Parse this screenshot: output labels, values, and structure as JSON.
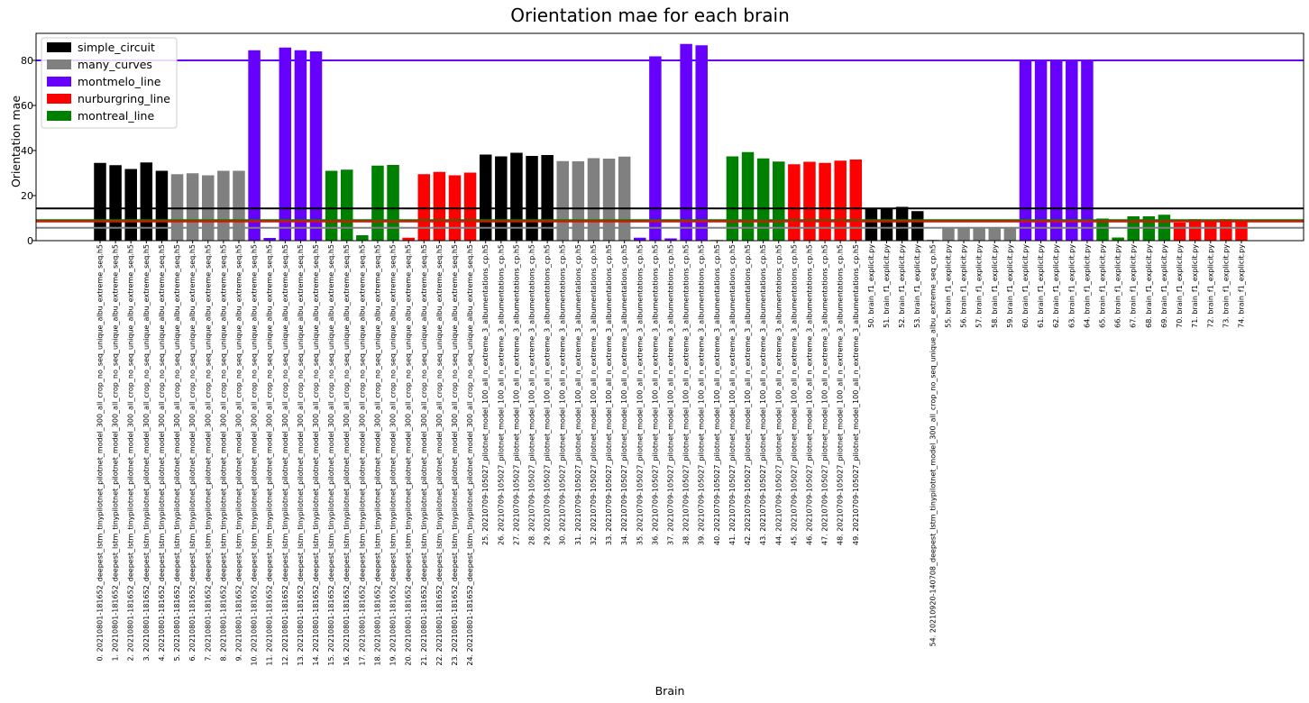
{
  "chart_data": {
    "type": "bar",
    "title": "Orientation mae for each brain",
    "xlabel": "Brain",
    "ylabel": "Orientation mae",
    "ylim": [
      0,
      92
    ],
    "yticks": [
      0,
      20,
      40,
      60,
      80
    ],
    "grid": false,
    "legend_position": "top-left",
    "series": [
      {
        "name": "simple_circuit",
        "color": "#000000"
      },
      {
        "name": "many_curves",
        "color": "#808080"
      },
      {
        "name": "montmelo_line",
        "color": "#6600ff"
      },
      {
        "name": "nurburgring_line",
        "color": "#ff0000"
      },
      {
        "name": "montreal_line",
        "color": "#008000"
      }
    ],
    "reference_lines": [
      {
        "series": "montmelo_line",
        "value": 80
      },
      {
        "series": "simple_circuit",
        "value": 14.3
      },
      {
        "series": "montreal_line",
        "value": 9.1
      },
      {
        "series": "nurburgring_line",
        "value": 8.5
      },
      {
        "series": "many_curves",
        "value": 5.7
      }
    ],
    "categories": [
      "0. 20210801-181652_deepest_lstm_tinypilotnet_pilotnet_model_300_all_crop_no_seq_unique_albu_extreme_seq.h5",
      "1. 20210801-181652_deepest_lstm_tinypilotnet_pilotnet_model_300_all_crop_no_seq_unique_albu_extreme_seq.h5",
      "2. 20210801-181652_deepest_lstm_tinypilotnet_pilotnet_model_300_all_crop_no_seq_unique_albu_extreme_seq.h5",
      "3. 20210801-181652_deepest_lstm_tinypilotnet_pilotnet_model_300_all_crop_no_seq_unique_albu_extreme_seq.h5",
      "4. 20210801-181652_deepest_lstm_tinypilotnet_pilotnet_model_300_all_crop_no_seq_unique_albu_extreme_seq.h5",
      "5. 20210801-181652_deepest_lstm_tinypilotnet_pilotnet_model_300_all_crop_no_seq_unique_albu_extreme_seq.h5",
      "6. 20210801-181652_deepest_lstm_tinypilotnet_pilotnet_model_300_all_crop_no_seq_unique_albu_extreme_seq.h5",
      "7. 20210801-181652_deepest_lstm_tinypilotnet_pilotnet_model_300_all_crop_no_seq_unique_albu_extreme_seq.h5",
      "8. 20210801-181652_deepest_lstm_tinypilotnet_pilotnet_model_300_all_crop_no_seq_unique_albu_extreme_seq.h5",
      "9. 20210801-181652_deepest_lstm_tinypilotnet_pilotnet_model_300_all_crop_no_seq_unique_albu_extreme_seq.h5",
      "10. 20210801-181652_deepest_lstm_tinypilotnet_pilotnet_model_300_all_crop_no_seq_unique_albu_extreme_seq.h5",
      "11. 20210801-181652_deepest_lstm_tinypilotnet_pilotnet_model_300_all_crop_no_seq_unique_albu_extreme_seq.h5",
      "12. 20210801-181652_deepest_lstm_tinypilotnet_pilotnet_model_300_all_crop_no_seq_unique_albu_extreme_seq.h5",
      "13. 20210801-181652_deepest_lstm_tinypilotnet_pilotnet_model_300_all_crop_no_seq_unique_albu_extreme_seq.h5",
      "14. 20210801-181652_deepest_lstm_tinypilotnet_pilotnet_model_300_all_crop_no_seq_unique_albu_extreme_seq.h5",
      "15. 20210801-181652_deepest_lstm_tinypilotnet_pilotnet_model_300_all_crop_no_seq_unique_albu_extreme_seq.h5",
      "16. 20210801-181652_deepest_lstm_tinypilotnet_pilotnet_model_300_all_crop_no_seq_unique_albu_extreme_seq.h5",
      "17. 20210801-181652_deepest_lstm_tinypilotnet_pilotnet_model_300_all_crop_no_seq_unique_albu_extreme_seq.h5",
      "18. 20210801-181652_deepest_lstm_tinypilotnet_pilotnet_model_300_all_crop_no_seq_unique_albu_extreme_seq.h5",
      "19. 20210801-181652_deepest_lstm_tinypilotnet_pilotnet_model_300_all_crop_no_seq_unique_albu_extreme_seq.h5",
      "20. 20210801-181652_deepest_lstm_tinypilotnet_pilotnet_model_300_all_crop_no_seq_unique_albu_extreme_seq.h5",
      "21. 20210801-181652_deepest_lstm_tinypilotnet_pilotnet_model_300_all_crop_no_seq_unique_albu_extreme_seq.h5",
      "22. 20210801-181652_deepest_lstm_tinypilotnet_pilotnet_model_300_all_crop_no_seq_unique_albu_extreme_seq.h5",
      "23. 20210801-181652_deepest_lstm_tinypilotnet_pilotnet_model_300_all_crop_no_seq_unique_albu_extreme_seq.h5",
      "24. 20210801-181652_deepest_lstm_tinypilotnet_pilotnet_model_300_all_crop_no_seq_unique_albu_extreme_seq.h5",
      "25. 20210709-105027_pilotnet_model_100_all_n_extreme_3_albumentations_cp.h5",
      "26. 20210709-105027_pilotnet_model_100_all_n_extreme_3_albumentations_cp.h5",
      "27. 20210709-105027_pilotnet_model_100_all_n_extreme_3_albumentations_cp.h5",
      "28. 20210709-105027_pilotnet_model_100_all_n_extreme_3_albumentations_cp.h5",
      "29. 20210709-105027_pilotnet_model_100_all_n_extreme_3_albumentations_cp.h5",
      "30. 20210709-105027_pilotnet_model_100_all_n_extreme_3_albumentations_cp.h5",
      "31. 20210709-105027_pilotnet_model_100_all_n_extreme_3_albumentations_cp.h5",
      "32. 20210709-105027_pilotnet_model_100_all_n_extreme_3_albumentations_cp.h5",
      "33. 20210709-105027_pilotnet_model_100_all_n_extreme_3_albumentations_cp.h5",
      "34. 20210709-105027_pilotnet_model_100_all_n_extreme_3_albumentations_cp.h5",
      "35. 20210709-105027_pilotnet_model_100_all_n_extreme_3_albumentations_cp.h5",
      "36. 20210709-105027_pilotnet_model_100_all_n_extreme_3_albumentations_cp.h5",
      "37. 20210709-105027_pilotnet_model_100_all_n_extreme_3_albumentations_cp.h5",
      "38. 20210709-105027_pilotnet_model_100_all_n_extreme_3_albumentations_cp.h5",
      "39. 20210709-105027_pilotnet_model_100_all_n_extreme_3_albumentations_cp.h5",
      "40. 20210709-105027_pilotnet_model_100_all_n_extreme_3_albumentations_cp.h5",
      "41. 20210709-105027_pilotnet_model_100_all_n_extreme_3_albumentations_cp.h5",
      "42. 20210709-105027_pilotnet_model_100_all_n_extreme_3_albumentations_cp.h5",
      "43. 20210709-105027_pilotnet_model_100_all_n_extreme_3_albumentations_cp.h5",
      "44. 20210709-105027_pilotnet_model_100_all_n_extreme_3_albumentations_cp.h5",
      "45. 20210709-105027_pilotnet_model_100_all_n_extreme_3_albumentations_cp.h5",
      "46. 20210709-105027_pilotnet_model_100_all_n_extreme_3_albumentations_cp.h5",
      "47. 20210709-105027_pilotnet_model_100_all_n_extreme_3_albumentations_cp.h5",
      "48. 20210709-105027_pilotnet_model_100_all_n_extreme_3_albumentations_cp.h5",
      "49. 20210709-105027_pilotnet_model_100_all_n_extreme_3_albumentations_cp.h5",
      "50. brain_f1_explicit.py",
      "51. brain_f1_explicit.py",
      "52. brain_f1_explicit.py",
      "53. brain_f1_explicit.py",
      "54. 20210920-140708_deepest_lstm_tinypilotnet_model_300_all_crop_no_seq_unique_albu_extreme_seq_cp.h5",
      "55. brain_f1_explicit.py",
      "56. brain_f1_explicit.py",
      "57. brain_f1_explicit.py",
      "58. brain_f1_explicit.py",
      "59. brain_f1_explicit.py",
      "60. brain_f1_explicit.py",
      "61. brain_f1_explicit.py",
      "62. brain_f1_explicit.py",
      "63. brain_f1_explicit.py",
      "64. brain_f1_explicit.py",
      "65. brain_f1_explicit.py",
      "66. brain_f1_explicit.py",
      "67. brain_f1_explicit.py",
      "68. brain_f1_explicit.py",
      "69. brain_f1_explicit.py",
      "70. brain_f1_explicit.py",
      "71. brain_f1_explicit.py",
      "72. brain_f1_explicit.py",
      "73. brain_f1_explicit.py",
      "74. brain_f1_explicit.py"
    ],
    "bar_series": [
      "simple_circuit",
      "simple_circuit",
      "simple_circuit",
      "simple_circuit",
      "simple_circuit",
      "many_curves",
      "many_curves",
      "many_curves",
      "many_curves",
      "many_curves",
      "montmelo_line",
      "montmelo_line",
      "montmelo_line",
      "montmelo_line",
      "montmelo_line",
      "montreal_line",
      "montreal_line",
      "montreal_line",
      "montreal_line",
      "montreal_line",
      "nurburgring_line",
      "nurburgring_line",
      "nurburgring_line",
      "nurburgring_line",
      "nurburgring_line",
      "simple_circuit",
      "simple_circuit",
      "simple_circuit",
      "simple_circuit",
      "simple_circuit",
      "many_curves",
      "many_curves",
      "many_curves",
      "many_curves",
      "many_curves",
      "montmelo_line",
      "montmelo_line",
      "montmelo_line",
      "montmelo_line",
      "montmelo_line",
      "montreal_line",
      "montreal_line",
      "montreal_line",
      "montreal_line",
      "montreal_line",
      "nurburgring_line",
      "nurburgring_line",
      "nurburgring_line",
      "nurburgring_line",
      "nurburgring_line",
      "simple_circuit",
      "simple_circuit",
      "simple_circuit",
      "simple_circuit",
      "simple_circuit",
      "many_curves",
      "many_curves",
      "many_curves",
      "many_curves",
      "many_curves",
      "montmelo_line",
      "montmelo_line",
      "montmelo_line",
      "montmelo_line",
      "montmelo_line",
      "montreal_line",
      "montreal_line",
      "montreal_line",
      "montreal_line",
      "montreal_line",
      "nurburgring_line",
      "nurburgring_line",
      "nurburgring_line",
      "nurburgring_line",
      "nurburgring_line"
    ],
    "values": [
      34.5,
      33.5,
      31.8,
      34.7,
      31.0,
      29.5,
      29.9,
      29.0,
      31.0,
      31.0,
      84.5,
      1.2,
      85.7,
      84.5,
      84.0,
      31.0,
      31.5,
      2.4,
      33.3,
      33.6,
      1.3,
      29.5,
      30.5,
      29.0,
      30.2,
      38.2,
      37.4,
      39.0,
      37.6,
      38.0,
      35.3,
      35.2,
      36.6,
      36.4,
      37.3,
      1.3,
      81.8,
      1.0,
      87.3,
      86.7,
      0.3,
      37.4,
      39.3,
      36.5,
      35.1,
      33.9,
      35.0,
      34.5,
      35.5,
      36.0,
      14.1,
      14.5,
      15.0,
      13.1,
      0.3,
      5.8,
      5.8,
      5.8,
      5.8,
      6.0,
      80.0,
      80.0,
      80.0,
      80.0,
      80.0,
      9.8,
      1.4,
      10.8,
      10.8,
      11.5,
      8.0,
      9.5,
      8.8,
      9.5,
      8.5
    ]
  }
}
